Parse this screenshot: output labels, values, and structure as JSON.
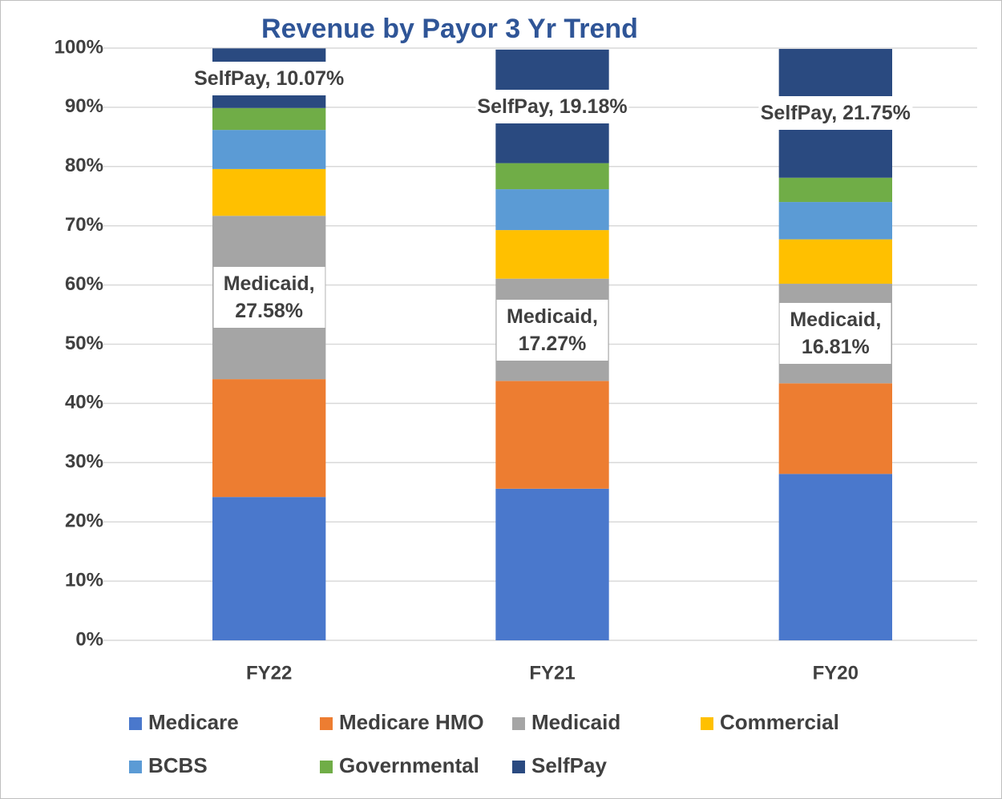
{
  "chart_data": {
    "type": "stacked_bar",
    "title": "Revenue by Payor 3 Yr Trend",
    "categories": [
      "FY22",
      "FY21",
      "FY20"
    ],
    "series": [
      {
        "name": "Medicare",
        "color": "#4a78cc",
        "values": [
          24.2,
          25.6,
          28.1
        ]
      },
      {
        "name": "Medicare HMO",
        "color": "#ed7d31",
        "values": [
          19.9,
          18.2,
          15.3
        ]
      },
      {
        "name": "Medicaid",
        "color": "#a5a5a5",
        "values": [
          27.58,
          17.27,
          16.81
        ],
        "value_labels": [
          "Medicaid, 27.58%",
          "Medicaid, 17.27%",
          "Medicaid, 16.81%"
        ]
      },
      {
        "name": "Commercial",
        "color": "#ffc000",
        "values": [
          7.9,
          8.2,
          7.5
        ]
      },
      {
        "name": "BCBS",
        "color": "#5b9bd5",
        "values": [
          6.6,
          6.9,
          6.3
        ]
      },
      {
        "name": "Governmental",
        "color": "#70ad47",
        "values": [
          3.7,
          4.4,
          4.1
        ]
      },
      {
        "name": "SelfPay",
        "color": "#2a4a80",
        "values": [
          10.07,
          19.18,
          21.75
        ],
        "value_labels": [
          "SelfPay, 10.07%",
          "SelfPay, 19.18%",
          "SelfPay, 21.75%"
        ]
      }
    ],
    "ylim": [
      0,
      100
    ],
    "yticks": [
      {
        "value": 0,
        "label": "0%"
      },
      {
        "value": 10,
        "label": "10%"
      },
      {
        "value": 20,
        "label": "20%"
      },
      {
        "value": 30,
        "label": "30%"
      },
      {
        "value": 40,
        "label": "40%"
      },
      {
        "value": 50,
        "label": "50%"
      },
      {
        "value": 60,
        "label": "60%"
      },
      {
        "value": 70,
        "label": "70%"
      },
      {
        "value": 80,
        "label": "80%"
      },
      {
        "value": 90,
        "label": "90%"
      },
      {
        "value": 100,
        "label": "100%"
      }
    ],
    "grid": true,
    "legend": "bottom"
  }
}
